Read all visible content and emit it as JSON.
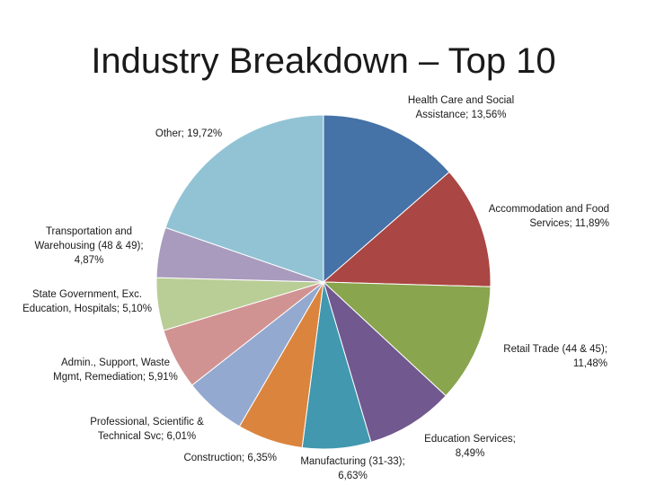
{
  "title": "Industry Breakdown – Top 10",
  "chart_data": {
    "type": "pie",
    "title": "Industry Breakdown – Top 10",
    "label_separator": "; ",
    "slices": [
      {
        "name": "Health Care and Social Assistance",
        "value": 13.56,
        "label": "13,56%",
        "color": "#4572a7"
      },
      {
        "name": "Accommodation and Food Services",
        "value": 11.89,
        "label": "11,89%",
        "color": "#aa4643"
      },
      {
        "name": "Retail Trade (44 & 45)",
        "value": 11.48,
        "label": "11,48%",
        "color": "#89a54e"
      },
      {
        "name": "Education Services",
        "value": 8.49,
        "label": "8,49%",
        "color": "#71588f"
      },
      {
        "name": "Manufacturing (31-33)",
        "value": 6.63,
        "label": "6,63%",
        "color": "#4198af"
      },
      {
        "name": "Construction",
        "value": 6.35,
        "label": "6,35%",
        "color": "#db843d"
      },
      {
        "name": "Professional, Scientific & Technical Svc",
        "value": 6.01,
        "label": "6,01%",
        "color": "#93a9cf"
      },
      {
        "name": "Admin., Support, Waste Mgmt, Remediation",
        "value": 5.91,
        "label": "5,91%",
        "color": "#d19392"
      },
      {
        "name": "State Government, Exc. Education, Hospitals",
        "value": 5.1,
        "label": "5,10%",
        "color": "#b9cd96"
      },
      {
        "name": "Transportation and Warehousing (48 & 49)",
        "value": 4.87,
        "label": "4,87%",
        "color": "#a99bbd"
      },
      {
        "name": "Other",
        "value": 19.72,
        "label": "19,72%",
        "color": "#92c3d4"
      }
    ]
  }
}
